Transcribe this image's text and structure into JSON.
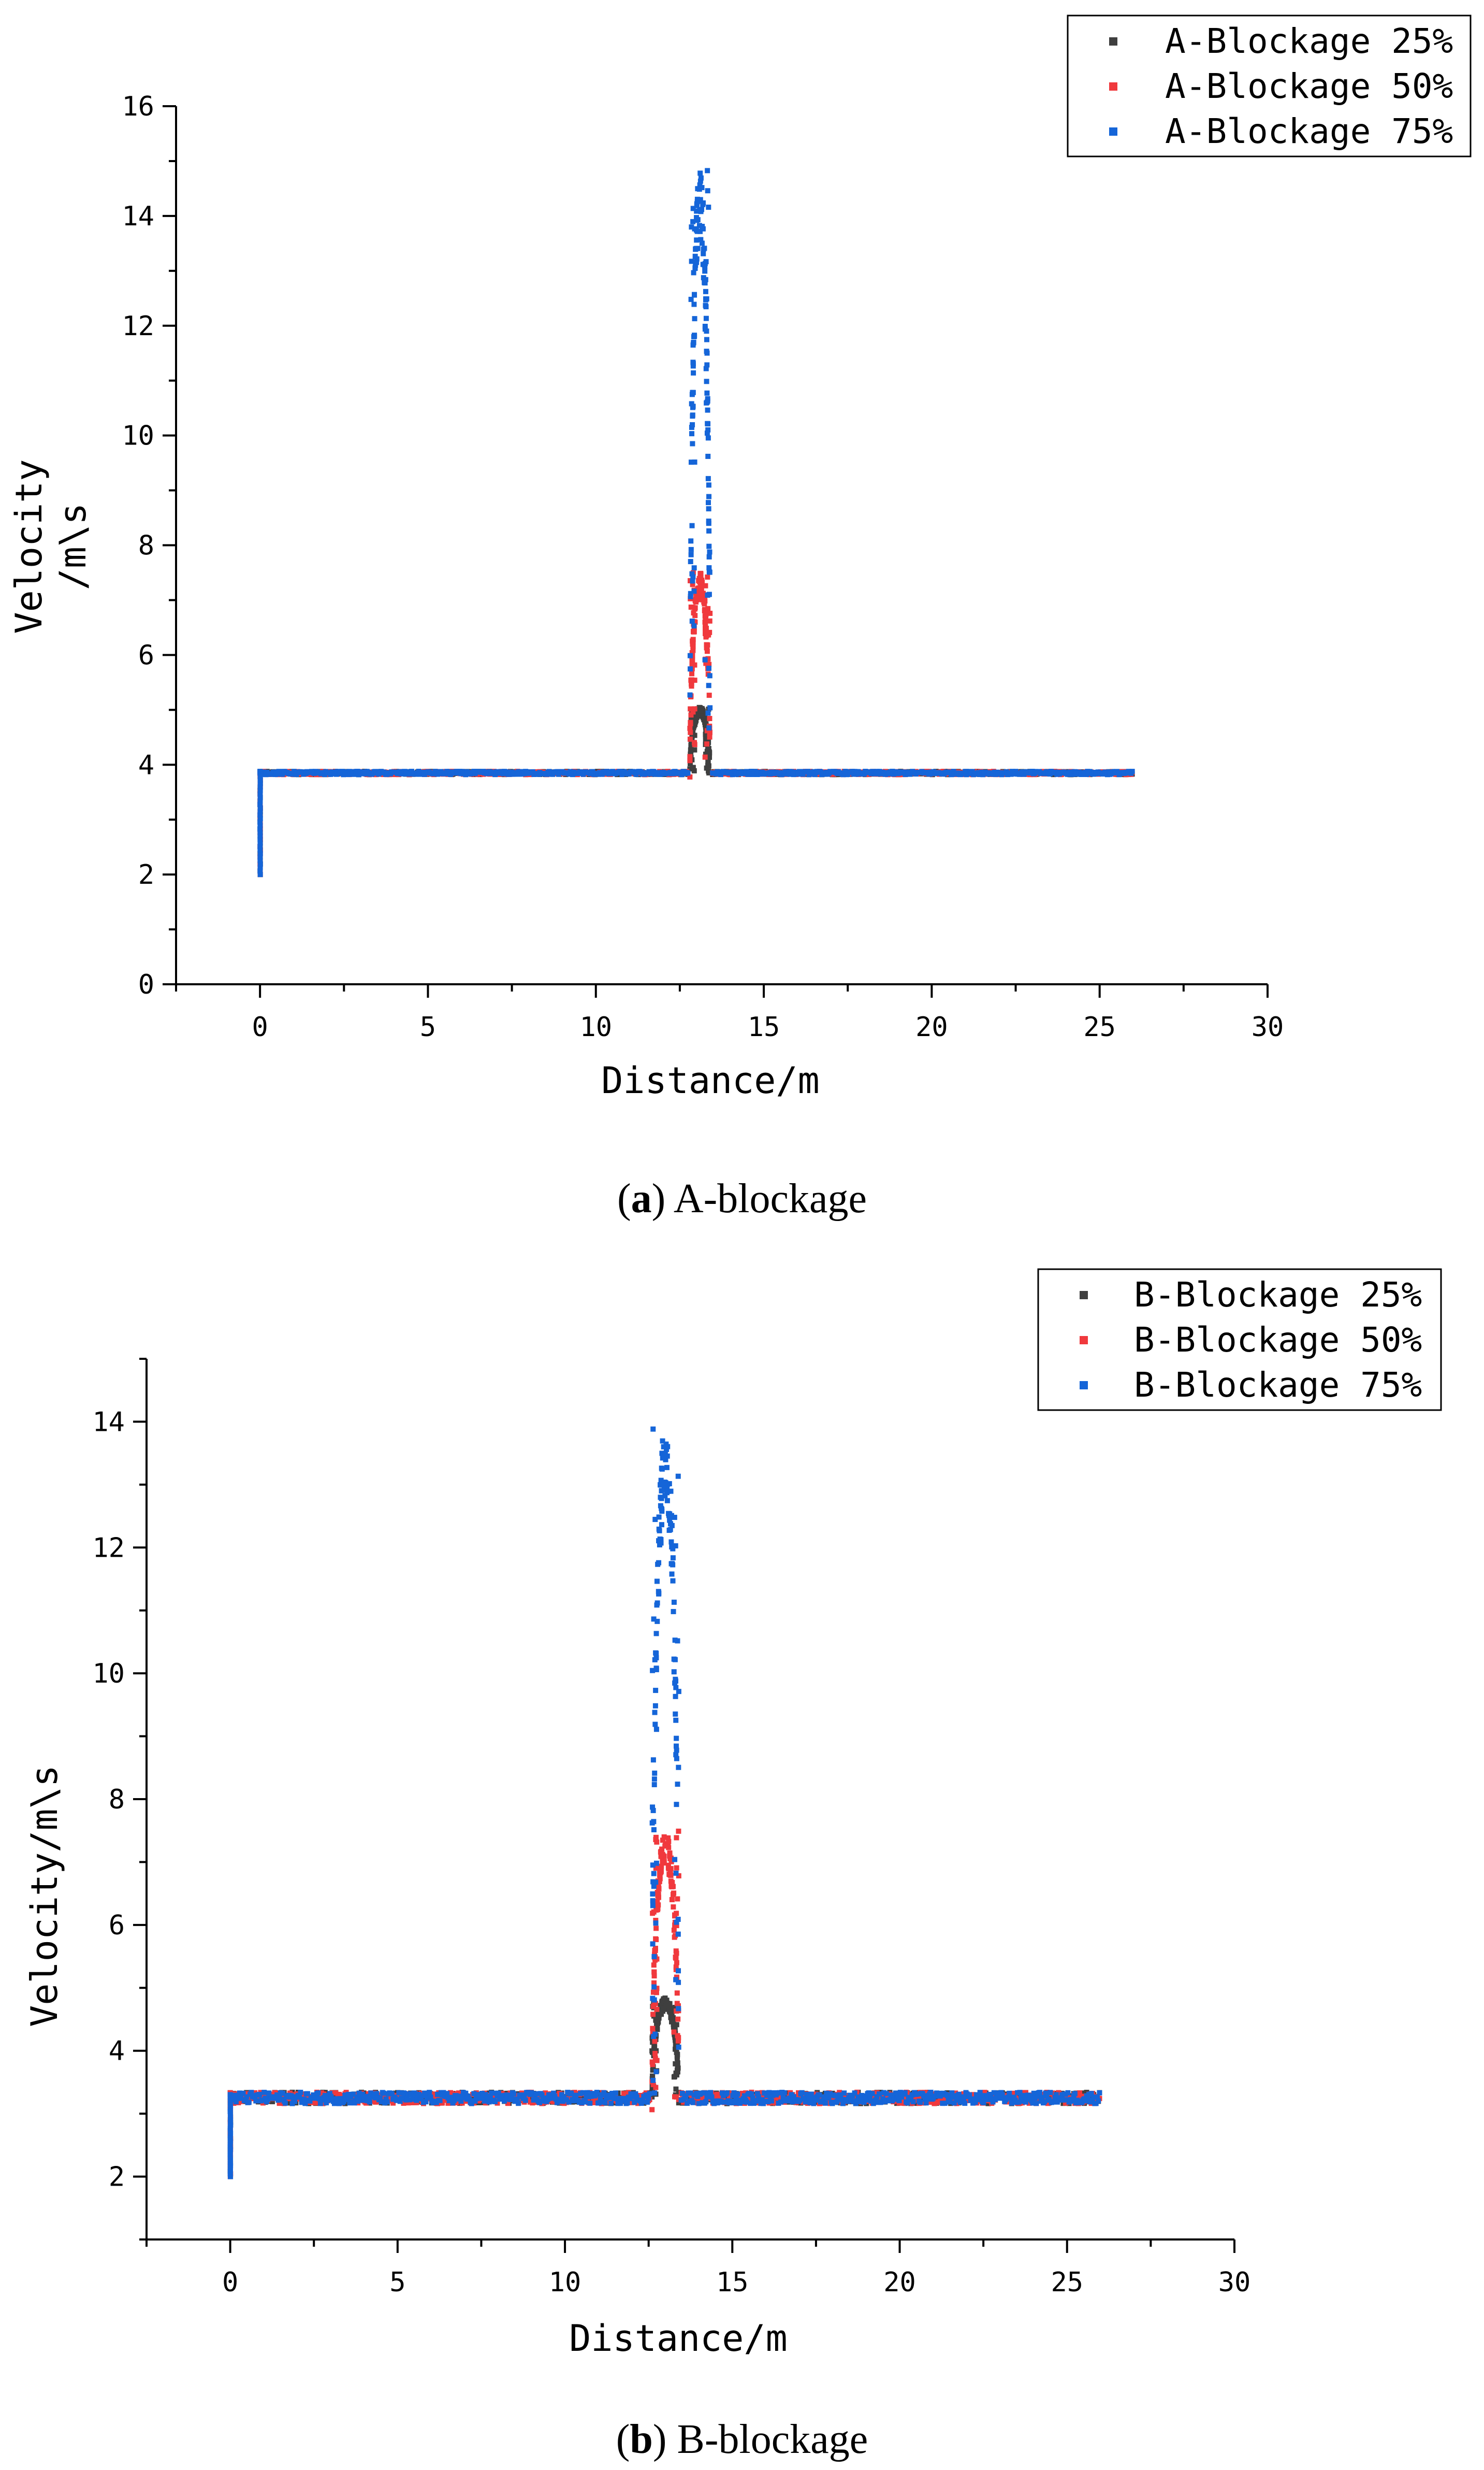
{
  "chart_data": [
    {
      "id": "a",
      "type": "scatter",
      "caption_letter": "a",
      "caption_text": " A-blockage",
      "xlabel": "Distance/m",
      "ylabel": [
        "Velocity",
        "/m\\s"
      ],
      "xlim": [
        -2.5,
        30
      ],
      "ylim": [
        0,
        16
      ],
      "xticks": [
        0,
        5,
        10,
        15,
        20,
        25,
        30
      ],
      "yticks": [
        0,
        2,
        4,
        6,
        8,
        10,
        12,
        14,
        16
      ],
      "series": [
        {
          "name": "A-Blockage 25%",
          "color": "#3f3f3f",
          "baseline": 3.85,
          "peak": 5.05,
          "start": 2.0
        },
        {
          "name": "A-Blockage 50%",
          "color": "#f0393d",
          "baseline": 3.85,
          "peak": 7.5,
          "start": 2.0
        },
        {
          "name": "A-Blockage 75%",
          "color": "#1565d8",
          "baseline": 3.85,
          "peak": 14.9,
          "start": 2.0
        }
      ],
      "peak_x": [
        12.8,
        13.4
      ],
      "x_end": 26
    },
    {
      "id": "b",
      "type": "scatter",
      "caption_letter": "b",
      "caption_text": " B-blockage",
      "xlabel": "Distance/m",
      "ylabel": [
        "Velocity/m\\s"
      ],
      "xlim": [
        -2.5,
        30
      ],
      "ylim": [
        1,
        15
      ],
      "xticks": [
        0,
        5,
        10,
        15,
        20,
        25,
        30
      ],
      "yticks": [
        2,
        4,
        6,
        8,
        10,
        12,
        14
      ],
      "series": [
        {
          "name": "B-Blockage 25%",
          "color": "#3f3f3f",
          "baseline": 3.25,
          "peak": 4.85,
          "start": 2.0
        },
        {
          "name": "B-Blockage 50%",
          "color": "#f0393d",
          "baseline": 3.25,
          "peak": 7.5,
          "start": 2.0
        },
        {
          "name": "B-Blockage 75%",
          "color": "#1565d8",
          "baseline": 3.25,
          "peak": 14.0,
          "start": 2.0
        }
      ],
      "peak_x": [
        12.6,
        13.4
      ],
      "x_end": 26
    }
  ]
}
